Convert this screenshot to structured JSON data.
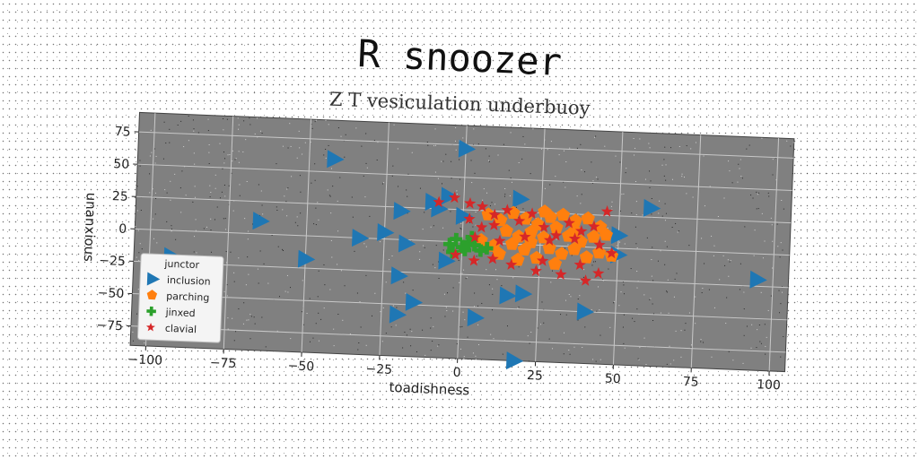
{
  "title": "R snoozer",
  "subtitle": "Z T vesiculation underbuoy",
  "chart_data": {
    "type": "scatter",
    "xlabel": "toadishness",
    "ylabel": "unanxious",
    "xlim": [
      -105,
      105
    ],
    "ylim": [
      -90,
      90
    ],
    "xticks": [
      "−100",
      "−75",
      "−50",
      "−25",
      "0",
      "25",
      "50",
      "75",
      "100"
    ],
    "xtick_values": [
      -100,
      -75,
      -50,
      -25,
      0,
      25,
      50,
      75,
      100
    ],
    "yticks": [
      "75",
      "50",
      "25",
      "0",
      "−25",
      "−50",
      "−75"
    ],
    "ytick_values": [
      75,
      50,
      25,
      0,
      -25,
      -50,
      -75
    ],
    "grid": true,
    "background": "#808080",
    "legend": {
      "title": "junctor",
      "placement": "lower-left",
      "entries": [
        "inclusion",
        "parching",
        "jinxed",
        "clavial"
      ]
    },
    "series": [
      {
        "name": "inclusion",
        "marker": "triangle-right",
        "color": "#1f77b4",
        "points": [
          [
            0,
            72
          ],
          [
            -42,
            60
          ],
          [
            -65,
            10
          ],
          [
            -93,
            -20
          ],
          [
            -50,
            -18
          ],
          [
            -25,
            5
          ],
          [
            -33,
            0
          ],
          [
            -20,
            22
          ],
          [
            -18,
            -3
          ],
          [
            -20,
            -28
          ],
          [
            -15,
            -48
          ],
          [
            -20,
            -58
          ],
          [
            -5,
            -15
          ],
          [
            -10,
            30
          ],
          [
            -8,
            25
          ],
          [
            -5,
            35
          ],
          [
            0,
            20
          ],
          [
            18,
            35
          ],
          [
            60,
            32
          ],
          [
            50,
            10
          ],
          [
            50,
            -5
          ],
          [
            95,
            -20
          ],
          [
            40,
            -50
          ],
          [
            20,
            -38
          ],
          [
            15,
            -40
          ],
          [
            5,
            -58
          ],
          [
            18,
            -90
          ]
        ]
      },
      {
        "name": "parching",
        "marker": "pentagon",
        "color": "#ff7f0e",
        "points": [
          [
            8,
            22
          ],
          [
            12,
            18
          ],
          [
            16,
            24
          ],
          [
            20,
            20
          ],
          [
            24,
            16
          ],
          [
            28,
            22
          ],
          [
            32,
            24
          ],
          [
            36,
            20
          ],
          [
            40,
            22
          ],
          [
            44,
            16
          ],
          [
            30,
            14
          ],
          [
            14,
            10
          ],
          [
            18,
            6
          ],
          [
            22,
            10
          ],
          [
            26,
            6
          ],
          [
            34,
            8
          ],
          [
            38,
            4
          ],
          [
            42,
            8
          ],
          [
            46,
            10
          ],
          [
            6,
            2
          ],
          [
            10,
            -2
          ],
          [
            16,
            0
          ],
          [
            20,
            -4
          ],
          [
            28,
            -2
          ],
          [
            32,
            -6
          ],
          [
            36,
            -2
          ],
          [
            40,
            -8
          ],
          [
            44,
            -4
          ],
          [
            48,
            -6
          ],
          [
            24,
            -10
          ],
          [
            30,
            -14
          ],
          [
            18,
            -12
          ],
          [
            12,
            -8
          ],
          [
            22,
            2
          ],
          [
            36,
            12
          ],
          [
            26,
            26
          ]
        ]
      },
      {
        "name": "jinxed",
        "marker": "plus",
        "color": "#2ca02c",
        "points": [
          [
            -4,
            -2
          ],
          [
            -2,
            2
          ],
          [
            0,
            -4
          ],
          [
            2,
            0
          ],
          [
            4,
            -2
          ],
          [
            6,
            -6
          ],
          [
            8,
            -4
          ],
          [
            -3,
            -8
          ],
          [
            1,
            -6
          ],
          [
            3,
            4
          ]
        ]
      },
      {
        "name": "clavial",
        "marker": "star",
        "color": "#d62728",
        "points": [
          [
            -8,
            30
          ],
          [
            -3,
            34
          ],
          [
            2,
            30
          ],
          [
            6,
            28
          ],
          [
            10,
            22
          ],
          [
            14,
            26
          ],
          [
            18,
            18
          ],
          [
            22,
            24
          ],
          [
            2,
            18
          ],
          [
            6,
            12
          ],
          [
            10,
            14
          ],
          [
            26,
            14
          ],
          [
            30,
            8
          ],
          [
            34,
            18
          ],
          [
            38,
            12
          ],
          [
            42,
            16
          ],
          [
            46,
            28
          ],
          [
            4,
            4
          ],
          [
            12,
            2
          ],
          [
            20,
            6
          ],
          [
            28,
            4
          ],
          [
            36,
            6
          ],
          [
            44,
            2
          ],
          [
            48,
            -4
          ],
          [
            -2,
            -10
          ],
          [
            4,
            -14
          ],
          [
            16,
            -16
          ],
          [
            24,
            -20
          ],
          [
            32,
            -22
          ],
          [
            40,
            -26
          ],
          [
            44,
            -20
          ],
          [
            10,
            -12
          ],
          [
            26,
            -12
          ],
          [
            38,
            -14
          ]
        ]
      }
    ]
  }
}
